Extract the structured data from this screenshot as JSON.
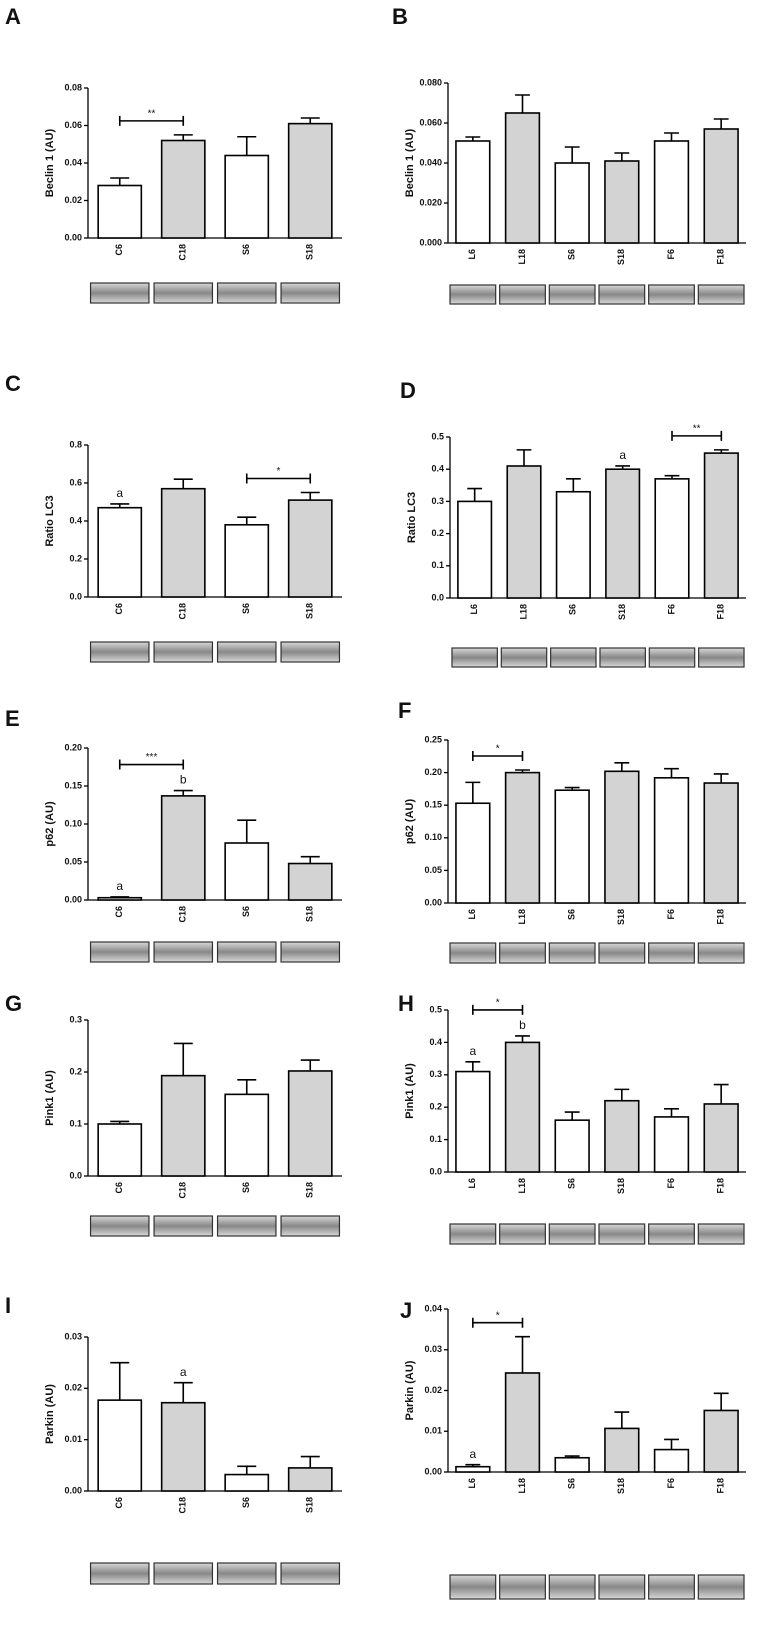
{
  "chart_data": [
    {
      "type": "bar",
      "panel": "A",
      "ylabel": "Beclin 1 (AU)",
      "categories": [
        "C6",
        "C18",
        "S6",
        "S18"
      ],
      "values": [
        0.028,
        0.052,
        0.044,
        0.061
      ],
      "errors": [
        0.004,
        0.003,
        0.01,
        0.003
      ],
      "colors": [
        "#ffffff",
        "#d3d3d3",
        "#ffffff",
        "#d3d3d3"
      ],
      "ylim": [
        0,
        0.08
      ],
      "yticks": [
        {
          "value": 0,
          "label": "0.00"
        },
        0.02,
        0.04,
        0.06,
        0.08
      ],
      "brackets": [
        {
          "from": 0,
          "to": 1,
          "label": "**"
        }
      ],
      "letters": []
    },
    {
      "type": "bar",
      "panel": "B",
      "ylabel": "Beclin 1 (AU)",
      "categories": [
        "L6",
        "L18",
        "S6",
        "S18",
        "F6",
        "F18"
      ],
      "values": [
        0.051,
        0.065,
        0.04,
        0.041,
        0.051,
        0.057
      ],
      "errors": [
        0.002,
        0.009,
        0.008,
        0.004,
        0.004,
        0.005
      ],
      "colors": [
        "#ffffff",
        "#d3d3d3",
        "#ffffff",
        "#d3d3d3",
        "#ffffff",
        "#d3d3d3"
      ],
      "ylim": [
        0,
        0.08
      ],
      "yticks": [
        {
          "value": 0,
          "label": "0.000"
        },
        {
          "value": 0.02,
          "label": "0.020"
        },
        {
          "value": 0.04,
          "label": "0.040"
        },
        {
          "value": 0.06,
          "label": "0.060"
        },
        {
          "value": 0.08,
          "label": "0.080"
        }
      ],
      "brackets": [],
      "letters": []
    },
    {
      "type": "bar",
      "panel": "C",
      "ylabel": "Ratio LC3",
      "categories": [
        "C6",
        "C18",
        "S6",
        "S18"
      ],
      "values": [
        0.47,
        0.57,
        0.38,
        0.51
      ],
      "errors": [
        0.02,
        0.05,
        0.04,
        0.04
      ],
      "colors": [
        "#ffffff",
        "#d3d3d3",
        "#ffffff",
        "#d3d3d3"
      ],
      "ylim": [
        0,
        0.8
      ],
      "yticks": [
        {
          "value": 0,
          "label": "0.0"
        },
        0.2,
        0.4,
        0.6,
        0.8
      ],
      "brackets": [
        {
          "from": 2,
          "to": 3,
          "label": "*"
        }
      ],
      "letters": [
        {
          "index": 0,
          "label": "a"
        }
      ]
    },
    {
      "type": "bar",
      "panel": "D",
      "ylabel": "Ratio  LC3",
      "categories": [
        "L6",
        "L18",
        "S6",
        "S18",
        "F6",
        "F18"
      ],
      "values": [
        0.3,
        0.41,
        0.33,
        0.4,
        0.37,
        0.45
      ],
      "errors": [
        0.04,
        0.05,
        0.04,
        0.01,
        0.01,
        0.01
      ],
      "colors": [
        "#ffffff",
        "#d3d3d3",
        "#ffffff",
        "#d3d3d3",
        "#ffffff",
        "#d3d3d3"
      ],
      "ylim": [
        0,
        0.5
      ],
      "yticks": [
        {
          "value": 0,
          "label": "0.0"
        },
        0.1,
        0.2,
        0.3,
        0.4,
        0.5
      ],
      "brackets": [
        {
          "from": 4,
          "to": 5,
          "label": "**"
        }
      ],
      "letters": [
        {
          "index": 3,
          "label": "a"
        }
      ]
    },
    {
      "type": "bar",
      "panel": "E",
      "ylabel": "p62 (AU)",
      "categories": [
        "C6",
        "C18",
        "S6",
        "S18"
      ],
      "values": [
        0.003,
        0.137,
        0.075,
        0.048
      ],
      "errors": [
        0.001,
        0.007,
        0.03,
        0.009
      ],
      "colors": [
        "#ffffff",
        "#d3d3d3",
        "#ffffff",
        "#d3d3d3"
      ],
      "ylim": [
        0,
        0.2
      ],
      "yticks": [
        {
          "value": 0,
          "label": "0.00"
        },
        0.05,
        {
          "value": 0.1,
          "label": "0.10"
        },
        0.15,
        {
          "value": 0.2,
          "label": "0.20"
        }
      ],
      "brackets": [
        {
          "from": 0,
          "to": 1,
          "label": "***"
        }
      ],
      "letters": [
        {
          "index": 0,
          "label": "a"
        },
        {
          "index": 1,
          "label": "b"
        }
      ]
    },
    {
      "type": "bar",
      "panel": "F",
      "ylabel": "p62  (AU)",
      "categories": [
        "L6",
        "L18",
        "S6",
        "S18",
        "F6",
        "F18"
      ],
      "values": [
        0.153,
        0.2,
        0.173,
        0.202,
        0.192,
        0.184
      ],
      "errors": [
        0.032,
        0.004,
        0.004,
        0.013,
        0.014,
        0.014
      ],
      "colors": [
        "#ffffff",
        "#d3d3d3",
        "#ffffff",
        "#d3d3d3",
        "#ffffff",
        "#d3d3d3"
      ],
      "ylim": [
        0,
        0.25
      ],
      "yticks": [
        {
          "value": 0,
          "label": "0.00"
        },
        0.05,
        {
          "value": 0.1,
          "label": "0.10"
        },
        0.15,
        {
          "value": 0.2,
          "label": "0.20"
        },
        0.25
      ],
      "brackets": [
        {
          "from": 0,
          "to": 1,
          "label": "*"
        }
      ],
      "letters": []
    },
    {
      "type": "bar",
      "panel": "G",
      "ylabel": "Pink1 (AU)",
      "categories": [
        "C6",
        "C18",
        "S6",
        "S18"
      ],
      "values": [
        0.1,
        0.193,
        0.157,
        0.202
      ],
      "errors": [
        0.005,
        0.062,
        0.028,
        0.021
      ],
      "colors": [
        "#ffffff",
        "#d3d3d3",
        "#ffffff",
        "#d3d3d3"
      ],
      "ylim": [
        0,
        0.3
      ],
      "yticks": [
        {
          "value": 0,
          "label": "0.0"
        },
        0.1,
        0.2,
        0.3
      ],
      "brackets": [],
      "letters": []
    },
    {
      "type": "bar",
      "panel": "H",
      "ylabel": "Pink1 (AU)",
      "categories": [
        "L6",
        "L18",
        "S6",
        "S18",
        "F6",
        "F18"
      ],
      "values": [
        0.31,
        0.4,
        0.16,
        0.22,
        0.17,
        0.21
      ],
      "errors": [
        0.03,
        0.02,
        0.025,
        0.035,
        0.025,
        0.06
      ],
      "colors": [
        "#ffffff",
        "#d3d3d3",
        "#ffffff",
        "#d3d3d3",
        "#ffffff",
        "#d3d3d3"
      ],
      "ylim": [
        0,
        0.5
      ],
      "yticks": [
        {
          "value": 0,
          "label": "0.0"
        },
        0.1,
        0.2,
        0.3,
        0.4,
        0.5
      ],
      "brackets": [
        {
          "from": 0,
          "to": 1,
          "label": "*"
        }
      ],
      "letters": [
        {
          "index": 0,
          "label": "a"
        },
        {
          "index": 1,
          "label": "b"
        }
      ]
    },
    {
      "type": "bar",
      "panel": "I",
      "ylabel": "Parkin (AU)",
      "categories": [
        "C6",
        "C18",
        "S6",
        "S18"
      ],
      "values": [
        0.0177,
        0.0172,
        0.0032,
        0.0045
      ],
      "errors": [
        0.0073,
        0.0039,
        0.0016,
        0.0022
      ],
      "colors": [
        "#ffffff",
        "#d3d3d3",
        "#ffffff",
        "#d3d3d3"
      ],
      "ylim": [
        0,
        0.03
      ],
      "yticks": [
        {
          "value": 0,
          "label": "0.00"
        },
        0.01,
        0.02,
        0.03
      ],
      "brackets": [],
      "letters": [
        {
          "index": 1,
          "label": "a"
        }
      ]
    },
    {
      "type": "bar",
      "panel": "J",
      "ylabel": "Parkin (AU)",
      "categories": [
        "L6",
        "L18",
        "S6",
        "S18",
        "F6",
        "F18"
      ],
      "values": [
        0.0013,
        0.0243,
        0.0035,
        0.0107,
        0.0055,
        0.0151
      ],
      "errors": [
        0.0005,
        0.0089,
        0.0004,
        0.004,
        0.0025,
        0.0042
      ],
      "colors": [
        "#ffffff",
        "#d3d3d3",
        "#ffffff",
        "#d3d3d3",
        "#ffffff",
        "#d3d3d3"
      ],
      "ylim": [
        0,
        0.04
      ],
      "yticks": [
        {
          "value": 0,
          "label": "0.00"
        },
        0.01,
        0.02,
        0.03,
        0.04
      ],
      "brackets": [
        {
          "from": 0,
          "to": 1,
          "label": "*"
        }
      ],
      "letters": [
        {
          "index": 0,
          "label": "a"
        }
      ]
    }
  ]
}
